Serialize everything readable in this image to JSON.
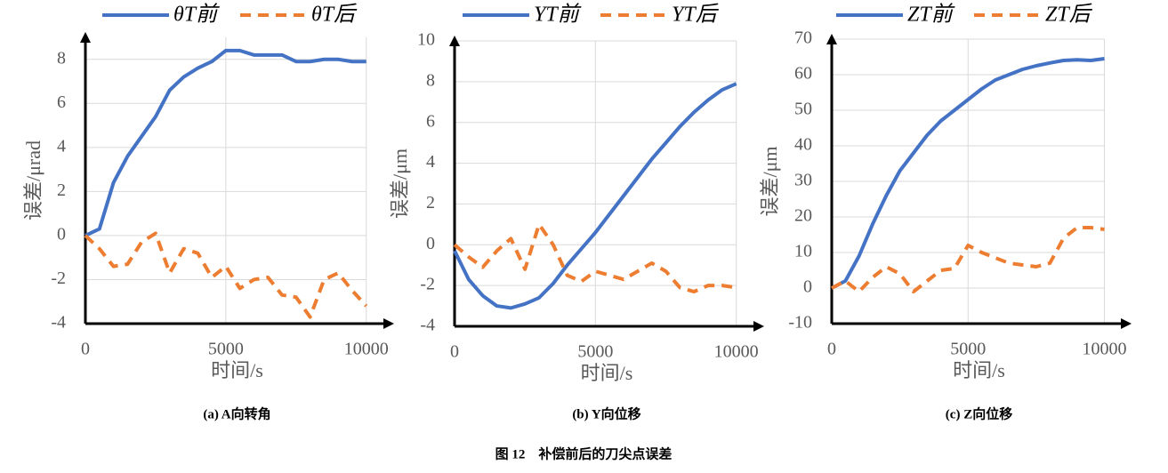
{
  "chart_data": [
    {
      "type": "line",
      "caption": "(a) A向转角",
      "x_label": "时间/s",
      "y_label": "误差/μrad",
      "x": [
        0,
        500,
        1000,
        1500,
        2000,
        2500,
        3000,
        3500,
        4000,
        4500,
        5000,
        5500,
        6000,
        6500,
        7000,
        7500,
        8000,
        8500,
        9000,
        9500,
        10000
      ],
      "xlim": [
        0,
        10800
      ],
      "xticks": [
        0,
        5000,
        10000
      ],
      "ylim": [
        -4,
        9
      ],
      "yticks": [
        -4,
        -2,
        0,
        2,
        4,
        6,
        8
      ],
      "grid": true,
      "series": [
        {
          "name": "θT前",
          "color": "#4472c4",
          "dashed": false,
          "values": [
            0,
            0.3,
            2.4,
            3.6,
            4.5,
            5.4,
            6.6,
            7.2,
            7.6,
            7.9,
            8.4,
            8.4,
            8.2,
            8.2,
            8.2,
            7.9,
            7.9,
            8.0,
            8.0,
            7.9,
            7.9
          ]
        },
        {
          "name": "θT后",
          "color": "#ed7d31",
          "dashed": true,
          "values": [
            0,
            -0.6,
            -1.4,
            -1.3,
            -0.3,
            0.1,
            -1.7,
            -0.6,
            -0.8,
            -1.9,
            -1.4,
            -2.4,
            -2.0,
            -1.9,
            -2.7,
            -2.8,
            -3.7,
            -2.0,
            -1.7,
            -2.5,
            -3.2
          ]
        }
      ]
    },
    {
      "type": "line",
      "caption": "(b) Y向位移",
      "x_label": "时间/s",
      "y_label": "误差/μm",
      "x": [
        0,
        500,
        1000,
        1500,
        2000,
        2500,
        3000,
        3500,
        4000,
        4500,
        5000,
        5500,
        6000,
        6500,
        7000,
        7500,
        8000,
        8500,
        9000,
        9500,
        10000
      ],
      "xlim": [
        0,
        10800
      ],
      "xticks": [
        0,
        5000,
        10000
      ],
      "ylim": [
        -4,
        10
      ],
      "yticks": [
        -4,
        -2,
        0,
        2,
        4,
        6,
        8,
        10
      ],
      "grid": true,
      "series": [
        {
          "name": "YT前",
          "color": "#4472c4",
          "dashed": false,
          "values": [
            -0.3,
            -1.7,
            -2.5,
            -3.0,
            -3.1,
            -2.9,
            -2.6,
            -1.9,
            -1.0,
            -0.2,
            0.6,
            1.5,
            2.4,
            3.3,
            4.2,
            5.0,
            5.8,
            6.5,
            7.1,
            7.6,
            7.9
          ]
        },
        {
          "name": "YT后",
          "color": "#ed7d31",
          "dashed": true,
          "values": [
            0,
            -0.6,
            -1.1,
            -0.3,
            0.3,
            -1.2,
            1.0,
            0.0,
            -1.5,
            -1.8,
            -1.3,
            -1.5,
            -1.7,
            -1.3,
            -0.9,
            -1.3,
            -2.1,
            -2.3,
            -2.0,
            -2.0,
            -2.1
          ]
        }
      ]
    },
    {
      "type": "line",
      "caption": "(c) Z向位移",
      "x_label": "时间/s",
      "y_label": "误差/μm",
      "x": [
        0,
        500,
        1000,
        1500,
        2000,
        2500,
        3000,
        3500,
        4000,
        4500,
        5000,
        5500,
        6000,
        6500,
        7000,
        7500,
        8000,
        8500,
        9000,
        9500,
        10000
      ],
      "xlim": [
        0,
        10800
      ],
      "xticks": [
        0,
        5000,
        10000
      ],
      "ylim": [
        -10,
        70
      ],
      "yticks": [
        -10,
        0,
        10,
        20,
        30,
        40,
        50,
        60,
        70
      ],
      "grid": true,
      "series": [
        {
          "name": "ZT前",
          "color": "#4472c4",
          "dashed": false,
          "values": [
            0,
            2,
            9,
            18,
            26,
            33,
            38,
            43,
            47,
            50,
            53,
            56,
            58.5,
            60,
            61.5,
            62.5,
            63.3,
            64,
            64.2,
            64,
            64.5
          ]
        },
        {
          "name": "ZT后",
          "color": "#ed7d31",
          "dashed": true,
          "values": [
            0,
            2,
            -1,
            3,
            6,
            4,
            -1,
            2,
            5,
            5.5,
            12,
            10,
            8.5,
            7,
            6.5,
            6,
            7,
            14,
            17,
            17,
            16.5
          ]
        }
      ]
    }
  ],
  "figure_caption": "图 12　补偿前后的刀尖点误差"
}
